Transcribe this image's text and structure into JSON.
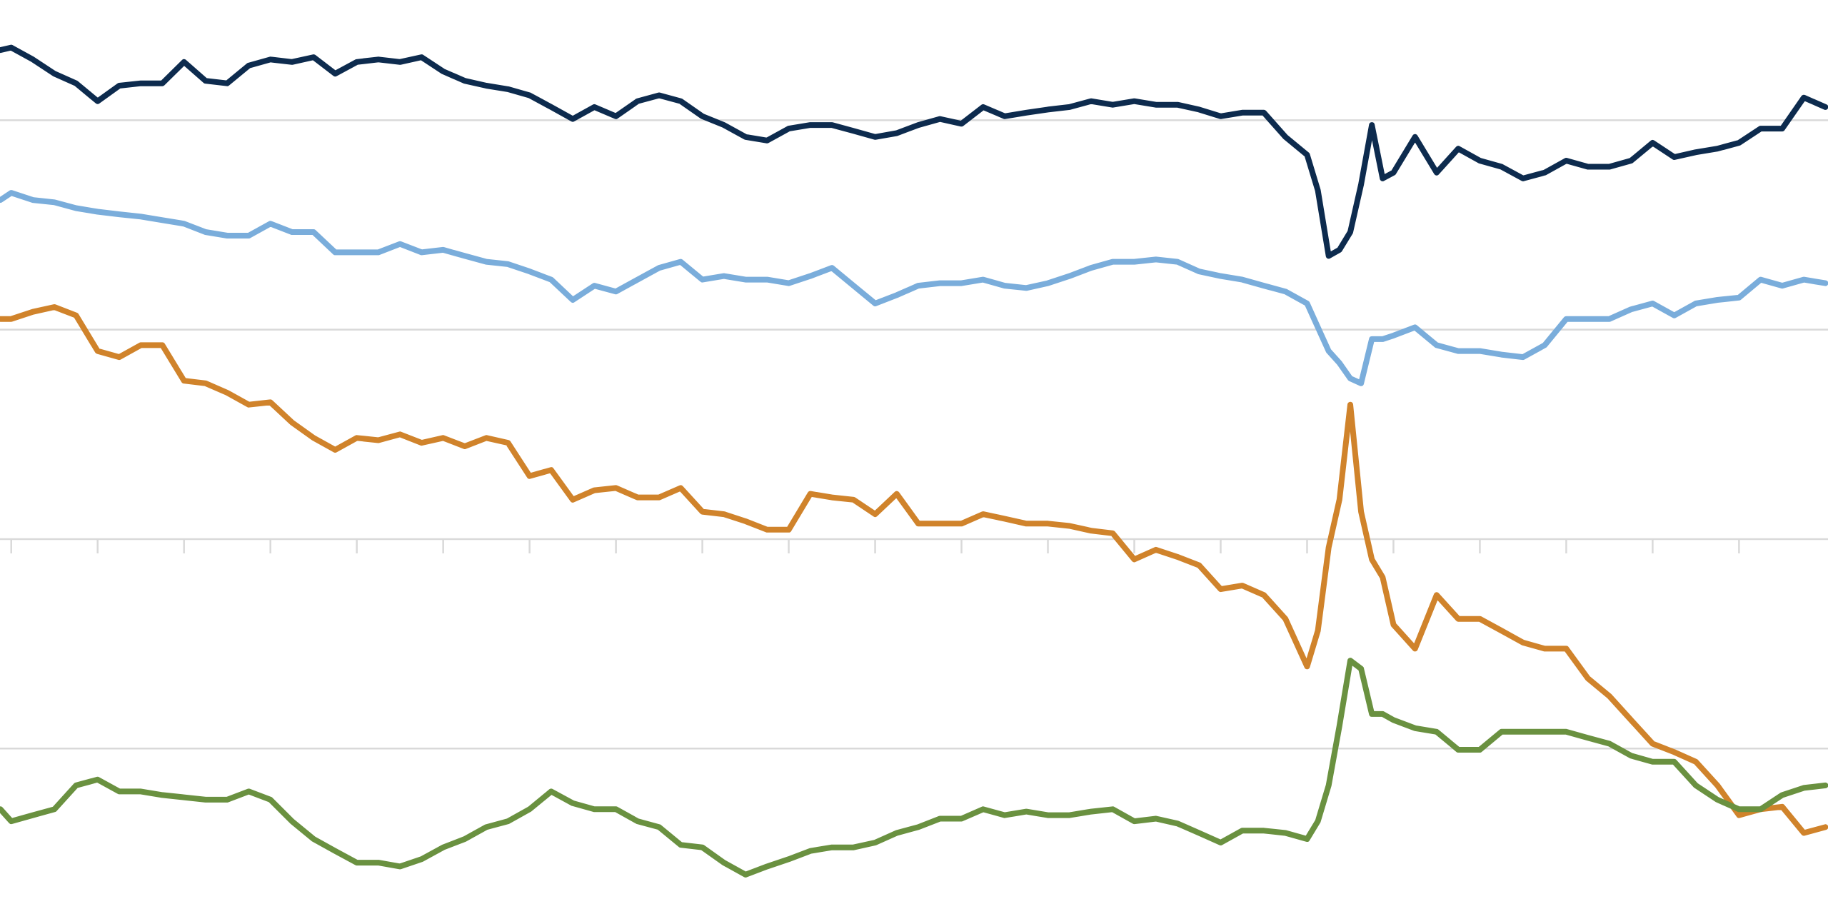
{
  "chart_data": {
    "type": "line",
    "x": [
      -0.125,
      0,
      0.25,
      0.5,
      0.75,
      1,
      1.25,
      1.5,
      1.75,
      2,
      2.25,
      2.5,
      2.75,
      3,
      3.25,
      3.5,
      3.75,
      4,
      4.25,
      4.5,
      4.75,
      5,
      5.25,
      5.5,
      5.75,
      6,
      6.25,
      6.5,
      6.75,
      7,
      7.25,
      7.5,
      7.75,
      8,
      8.25,
      8.5,
      8.75,
      9,
      9.25,
      9.5,
      9.75,
      10,
      10.25,
      10.5,
      10.75,
      11,
      11.25,
      11.5,
      11.75,
      12,
      12.25,
      12.5,
      12.75,
      13,
      13.25,
      13.5,
      13.75,
      14,
      14.25,
      14.5,
      14.75,
      15,
      15.125,
      15.25,
      15.375,
      15.5,
      15.625,
      15.75,
      15.875,
      16,
      16.25,
      16.5,
      16.75,
      17,
      17.25,
      17.5,
      17.75,
      18,
      18.25,
      18.5,
      18.75,
      19,
      19.25,
      19.5,
      19.75,
      20,
      20.25,
      20.5,
      20.75,
      21
    ],
    "series": [
      {
        "color": "#0d2b4e",
        "values": [
          33.35,
          33.47,
          32.9,
          32.22,
          31.76,
          30.91,
          31.65,
          31.76,
          31.76,
          32.78,
          31.88,
          31.76,
          32.61,
          32.9,
          32.78,
          33.01,
          32.22,
          32.78,
          32.9,
          32.78,
          33.01,
          32.33,
          31.88,
          31.65,
          31.48,
          31.19,
          30.63,
          30.06,
          30.63,
          30.19,
          30.91,
          31.19,
          30.91,
          30.19,
          29.77,
          29.2,
          29.03,
          29.6,
          29.77,
          29.77,
          29.49,
          29.2,
          29.38,
          29.77,
          30.06,
          29.83,
          30.63,
          30.19,
          30.36,
          30.51,
          30.63,
          30.91,
          30.74,
          30.91,
          30.74,
          30.74,
          30.51,
          30.19,
          30.36,
          30.36,
          29.2,
          28.35,
          26.65,
          23.52,
          23.81,
          24.66,
          26.93,
          29.77,
          27.22,
          27.5,
          29.2,
          27.5,
          28.64,
          28.07,
          27.78,
          27.22,
          27.5,
          28.07,
          27.78,
          27.78,
          28.07,
          28.92,
          28.24,
          28.47,
          28.64,
          28.92,
          29.6,
          29.6,
          31.08,
          30.63
        ]
      },
      {
        "color": "#7aaddb",
        "values": [
          26.19,
          26.53,
          26.19,
          26.08,
          25.8,
          25.63,
          25.51,
          25.4,
          25.23,
          25.06,
          24.66,
          24.49,
          24.49,
          25.06,
          24.66,
          24.66,
          23.69,
          23.69,
          23.69,
          24.09,
          23.69,
          23.81,
          23.52,
          23.24,
          23.13,
          22.78,
          22.39,
          21.42,
          22.1,
          21.82,
          22.39,
          22.95,
          23.24,
          22.39,
          22.56,
          22.39,
          22.39,
          22.22,
          22.56,
          22.95,
          22.1,
          21.25,
          21.65,
          22.1,
          22.22,
          22.22,
          22.39,
          22.1,
          21.99,
          22.22,
          22.56,
          22.95,
          23.24,
          23.24,
          23.35,
          23.24,
          22.78,
          22.56,
          22.39,
          22.1,
          21.82,
          21.25,
          20.11,
          18.98,
          18.41,
          17.67,
          17.44,
          19.55,
          19.55,
          19.72,
          20.11,
          19.26,
          18.98,
          18.98,
          18.81,
          18.69,
          19.26,
          20.51,
          20.51,
          20.51,
          20.97,
          21.25,
          20.68,
          21.25,
          21.42,
          21.53,
          22.39,
          22.1,
          22.39,
          22.22
        ]
      },
      {
        "color": "#d0832b",
        "values": [
          20.51,
          20.51,
          20.85,
          21.08,
          20.68,
          18.98,
          18.69,
          19.26,
          19.26,
          17.56,
          17.44,
          16.99,
          16.42,
          16.53,
          15.57,
          14.83,
          14.26,
          14.83,
          14.72,
          15,
          14.6,
          14.83,
          14.43,
          14.83,
          14.6,
          13.01,
          13.3,
          11.88,
          12.33,
          12.44,
          11.99,
          11.99,
          12.44,
          11.31,
          11.19,
          10.85,
          10.45,
          10.45,
          12.16,
          11.99,
          11.88,
          11.19,
          12.16,
          10.74,
          10.74,
          10.74,
          11.19,
          10.97,
          10.74,
          10.74,
          10.63,
          10.4,
          10.28,
          9.03,
          9.49,
          9.15,
          8.75,
          7.61,
          7.78,
          7.33,
          6.19,
          3.92,
          5.63,
          9.6,
          11.88,
          16.42,
          11.31,
          9.03,
          8.18,
          5.91,
          4.77,
          7.33,
          6.19,
          6.19,
          5.63,
          5.06,
          4.77,
          4.77,
          3.35,
          2.5,
          1.36,
          0.23,
          -0.17,
          -0.63,
          -1.76,
          -3.18,
          -2.9,
          -2.78,
          -4.03,
          -3.75
        ]
      },
      {
        "color": "#6a9140",
        "values": [
          -2.9,
          -3.47,
          -3.18,
          -2.9,
          -1.76,
          -1.48,
          -2.05,
          -2.05,
          -2.22,
          -2.33,
          -2.44,
          -2.44,
          -2.05,
          -2.44,
          -3.47,
          -4.32,
          -4.89,
          -5.45,
          -5.45,
          -5.63,
          -5.28,
          -4.72,
          -4.32,
          -3.75,
          -3.47,
          -2.9,
          -2.05,
          -2.61,
          -2.9,
          -2.9,
          -3.47,
          -3.75,
          -4.6,
          -4.72,
          -5.45,
          -6.02,
          -5.63,
          -5.28,
          -4.89,
          -4.72,
          -4.72,
          -4.49,
          -4.03,
          -3.75,
          -3.35,
          -3.35,
          -2.9,
          -3.18,
          -3.01,
          -3.18,
          -3.18,
          -3.01,
          -2.9,
          -3.47,
          -3.35,
          -3.58,
          -4.03,
          -4.49,
          -3.92,
          -3.92,
          -4.03,
          -4.32,
          -3.47,
          -1.76,
          1.08,
          4.2,
          3.81,
          1.65,
          1.65,
          1.36,
          0.97,
          0.8,
          -0.06,
          -0.06,
          0.8,
          0.8,
          0.8,
          0.8,
          0.51,
          0.23,
          -0.34,
          -0.63,
          -0.63,
          -1.76,
          -2.44,
          -2.9,
          -2.9,
          -2.22,
          -1.88,
          -1.76
        ]
      }
    ],
    "xlim": [
      -0.13,
      21.03
    ],
    "xticks": [
      0,
      1,
      2,
      3,
      4,
      5,
      6,
      7,
      8,
      9,
      10,
      11,
      12,
      13,
      14,
      15,
      16,
      17,
      18,
      19,
      20
    ],
    "ylim": [
      -7.9,
      35.74
    ],
    "yticks": [
      0,
      10,
      20,
      30
    ],
    "x_axis_at": 10,
    "grid": true
  }
}
